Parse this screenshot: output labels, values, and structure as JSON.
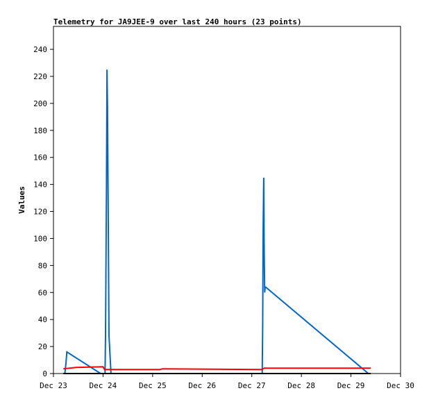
{
  "chart_data": {
    "type": "line",
    "title": "Telemetry for JA9JEE-9 over last 240 hours (23 points)",
    "xlabel": "",
    "ylabel": "Values",
    "ylim": [
      0,
      257
    ],
    "xlim": [
      0,
      7
    ],
    "yticks": [
      0,
      20,
      40,
      60,
      80,
      100,
      120,
      140,
      160,
      180,
      200,
      220,
      240
    ],
    "xticks": [
      {
        "x": 0,
        "label": "Dec 23"
      },
      {
        "x": 1,
        "label": "Dec 24"
      },
      {
        "x": 2,
        "label": "Dec 25"
      },
      {
        "x": 3,
        "label": "Dec 26"
      },
      {
        "x": 4,
        "label": "Dec 27"
      },
      {
        "x": 5,
        "label": "Dec 28"
      },
      {
        "x": 6,
        "label": "Dec 29"
      },
      {
        "x": 7,
        "label": "Dec 30"
      }
    ],
    "grid": false,
    "series": [
      {
        "color": "#0066cc",
        "x": [
          0.23,
          0.25,
          0.27,
          0.95,
          1.0,
          1.04,
          1.05,
          1.06,
          1.07,
          1.08,
          1.09,
          1.1,
          1.11,
          1.12,
          1.16,
          1.17,
          4.21,
          4.22,
          4.23,
          4.24,
          4.25,
          4.26,
          4.27,
          4.28,
          6.35
        ],
        "y": [
          0,
          7,
          16,
          0,
          0,
          0,
          28,
          84,
          140,
          225,
          196,
          140,
          84,
          28,
          0,
          0,
          0,
          36,
          108,
          145,
          90,
          60,
          64,
          64,
          0
        ]
      },
      {
        "color": "#ff0000",
        "x": [
          0.2,
          0.45,
          1.0,
          1.03,
          2.15,
          2.2,
          4.2,
          4.25,
          6.4
        ],
        "y": [
          3.5,
          4.5,
          5,
          3,
          3,
          3.5,
          3,
          4,
          4
        ]
      },
      {
        "color": "#000000",
        "x": [
          0.2,
          6.4
        ],
        "y": [
          0,
          0
        ]
      }
    ]
  }
}
